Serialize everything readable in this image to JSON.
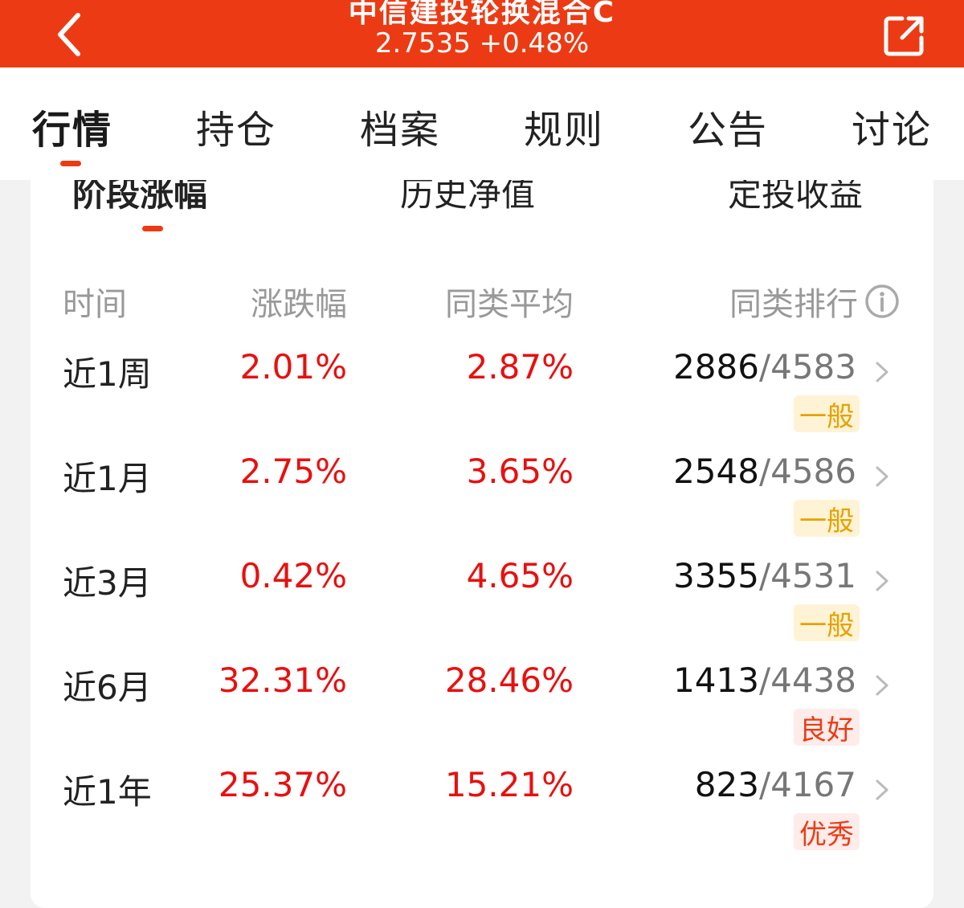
{
  "header": {
    "fund_name": "中信建投轮换混合C",
    "nav_price": "2.7535 +0.48%"
  },
  "tabs": [
    {
      "label": "行情"
    },
    {
      "label": "持仓"
    },
    {
      "label": "档案"
    },
    {
      "label": "规则"
    },
    {
      "label": "公告"
    },
    {
      "label": "讨论"
    }
  ],
  "subtabs": [
    {
      "label": "阶段涨幅"
    },
    {
      "label": "历史净值"
    },
    {
      "label": "定投收益"
    }
  ],
  "table": {
    "headers": {
      "period": "时间",
      "change": "涨跌幅",
      "avg": "同类平均",
      "rank": "同类排行"
    },
    "rows": [
      {
        "period": "近1周",
        "change": "2.01%",
        "avg": "2.87%",
        "rank": "2886",
        "total": "/4583",
        "rating": "一般"
      },
      {
        "period": "近1月",
        "change": "2.75%",
        "avg": "3.65%",
        "rank": "2548",
        "total": "/4586",
        "rating": "一般"
      },
      {
        "period": "近3月",
        "change": "0.42%",
        "avg": "4.65%",
        "rank": "3355",
        "total": "/4531",
        "rating": "一般"
      },
      {
        "period": "近6月",
        "change": "32.31%",
        "avg": "28.46%",
        "rank": "1413",
        "total": "/4438",
        "rating": "良好"
      },
      {
        "period": "近1年",
        "change": "25.37%",
        "avg": "15.21%",
        "rank": "823",
        "total": "/4167",
        "rating": "优秀"
      }
    ]
  },
  "colors": {
    "brand": "#ec3b14",
    "up": "#e8100f",
    "rating_normal_bg": "#fff3d6",
    "rating_normal_text": "#e6a100",
    "rating_good_bg": "#fdecea",
    "rating_good_text": "#ec3b14"
  },
  "icons": {
    "back": "chevron-left-icon",
    "share": "share-icon",
    "info": "info-icon",
    "row_chevron": "chevron-right-icon"
  }
}
